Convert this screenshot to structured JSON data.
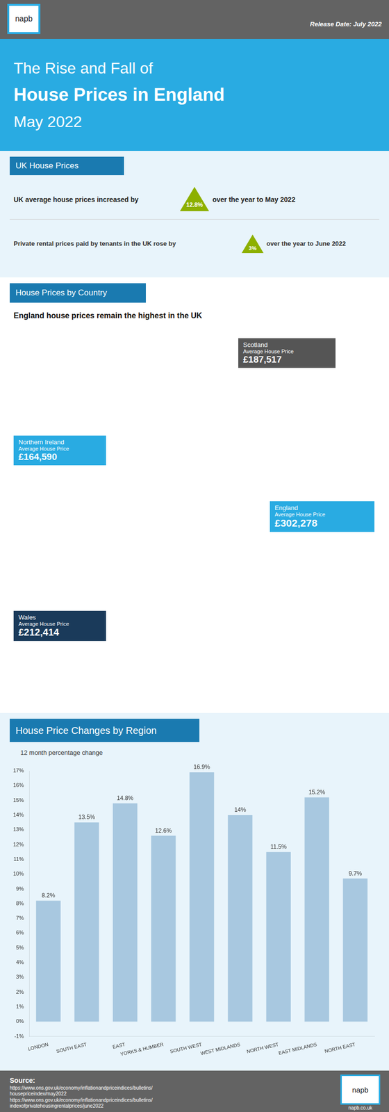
{
  "chart_data": {
    "type": "bar",
    "title": "House Price Changes by Region",
    "subtitle": "12 month percentage change",
    "categories": [
      "LONDON",
      "SOUTH EAST",
      "EAST",
      "YORKS & HUMBER",
      "SOUTH WEST",
      "WEST MIDLANDS",
      "NORTH WEST",
      "EAST MIDLANDS",
      "NORTH EAST"
    ],
    "values": [
      8.2,
      13.5,
      14.8,
      12.6,
      16.9,
      14.0,
      11.5,
      15.2,
      9.7
    ],
    "value_labels": [
      "8.2%",
      "13.5%",
      "14.8%",
      "12.6%",
      "16.9%",
      "14%",
      "11.5%",
      "15.2%",
      "9.7%"
    ],
    "data_labels": true,
    "color": "#a8c8e0",
    "ylim": [
      -1,
      17
    ],
    "yticks": [
      {
        "value": -1,
        "label": "-1%"
      },
      {
        "value": 0,
        "label": "0%"
      },
      {
        "value": 1,
        "label": "1%"
      },
      {
        "value": 2,
        "label": "2%"
      },
      {
        "value": 3,
        "label": "3%"
      },
      {
        "value": 4,
        "label": "4%"
      },
      {
        "value": 5,
        "label": "5%"
      },
      {
        "value": 6,
        "label": "6%"
      },
      {
        "value": 7,
        "label": "7%"
      },
      {
        "value": 8,
        "label": "8%"
      },
      {
        "value": 9,
        "label": "9%"
      },
      {
        "value": 10,
        "label": "10%"
      },
      {
        "value": 11,
        "label": "11%"
      },
      {
        "value": 12,
        "label": "12%"
      },
      {
        "value": 13,
        "label": "13%"
      },
      {
        "value": 14,
        "label": "14%"
      },
      {
        "value": 15,
        "label": "15%"
      },
      {
        "value": 16,
        "label": "16%"
      },
      {
        "value": 17,
        "label": "17%"
      }
    ],
    "grid": false,
    "annotations": [
      "napb",
      "Release Date: July 2022",
      "The Rise and Fall of",
      "House Prices in England",
      "May 2022",
      "UK House Prices",
      "UK average house prices increased by",
      "12.8%",
      "over the year to May 2022",
      "Private rental prices paid by tenants in the UK rose by",
      "3%",
      "over the year to June 2022",
      "House Prices by Country",
      "England house prices remain the highest in the UK",
      "Northern Ireland",
      "Average House Price",
      "£164,590",
      "Scotland",
      "Average House Price",
      "£187,517",
      "England",
      "Average House Price",
      "£302,278",
      "Wales",
      "Average House Price",
      "£212,414",
      "Source:",
      "https://www.ons.gov.uk/economy/inflationandpriceindices/bulletins/",
      "housepriceindex/may2022",
      "https://www.ons.gov.uk/economy/inflationandpriceindices/bulletins/",
      "indexofprivatehousingrentalprices/june2022",
      "napb",
      "napb.co.uk"
    ]
  }
}
